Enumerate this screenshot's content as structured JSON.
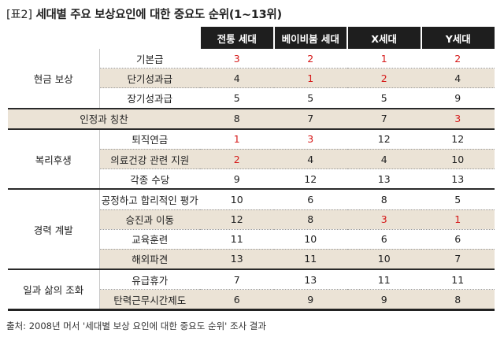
{
  "title": {
    "tag": "[표2]",
    "text": "세대별 주요 보상요인에 대한 중요도 순위(1~13위)"
  },
  "table": {
    "headers": [
      "전통 세대",
      "베이비붐 세대",
      "X세대",
      "Y세대"
    ],
    "groups": [
      {
        "name": "현금 보상",
        "rows": [
          {
            "item": "기본급",
            "values": [
              "3",
              "2",
              "1",
              "2"
            ],
            "red": [
              true,
              true,
              true,
              true
            ]
          },
          {
            "item": "단기성과급",
            "values": [
              "4",
              "1",
              "2",
              "4"
            ],
            "red": [
              false,
              true,
              true,
              false
            ]
          },
          {
            "item": "장기성과급",
            "values": [
              "5",
              "5",
              "5",
              "9"
            ],
            "red": [
              false,
              false,
              false,
              false
            ]
          }
        ]
      },
      {
        "name": "",
        "rows": [
          {
            "item": "인정과 칭찬",
            "values": [
              "8",
              "7",
              "7",
              "3"
            ],
            "red": [
              false,
              false,
              false,
              true
            ]
          }
        ]
      },
      {
        "name": "복리후생",
        "rows": [
          {
            "item": "퇴직연금",
            "values": [
              "1",
              "3",
              "12",
              "12"
            ],
            "red": [
              true,
              true,
              false,
              false
            ]
          },
          {
            "item": "의료건강 관련 지원",
            "values": [
              "2",
              "4",
              "4",
              "10"
            ],
            "red": [
              true,
              false,
              false,
              false
            ]
          },
          {
            "item": "각종 수당",
            "values": [
              "9",
              "12",
              "13",
              "13"
            ],
            "red": [
              false,
              false,
              false,
              false
            ]
          }
        ]
      },
      {
        "name": "경력 계발",
        "rows": [
          {
            "item": "공정하고 합리적인 평가",
            "values": [
              "10",
              "6",
              "8",
              "5"
            ],
            "red": [
              false,
              false,
              false,
              false
            ]
          },
          {
            "item": "승진과 이동",
            "values": [
              "12",
              "8",
              "3",
              "1"
            ],
            "red": [
              false,
              false,
              true,
              true
            ]
          },
          {
            "item": "교육훈련",
            "values": [
              "11",
              "10",
              "6",
              "6"
            ],
            "red": [
              false,
              false,
              false,
              false
            ]
          },
          {
            "item": "해외파견",
            "values": [
              "13",
              "11",
              "10",
              "7"
            ],
            "red": [
              false,
              false,
              false,
              false
            ]
          }
        ]
      },
      {
        "name": "일과 삶의 조화",
        "rows": [
          {
            "item": "유급휴가",
            "values": [
              "7",
              "13",
              "11",
              "11"
            ],
            "red": [
              false,
              false,
              false,
              false
            ]
          },
          {
            "item": "탄력근무시간제도",
            "values": [
              "6",
              "9",
              "9",
              "8"
            ],
            "red": [
              false,
              false,
              false,
              false
            ]
          }
        ]
      }
    ]
  },
  "source": "출처: 2008년 머서 '세대별 보상 요인에 대한 중요도 순위' 조사 결과",
  "colors": {
    "header_bg": "#1e1e1e",
    "shade_bg": "#ebe3d6",
    "highlight_red": "#d61a1a"
  }
}
